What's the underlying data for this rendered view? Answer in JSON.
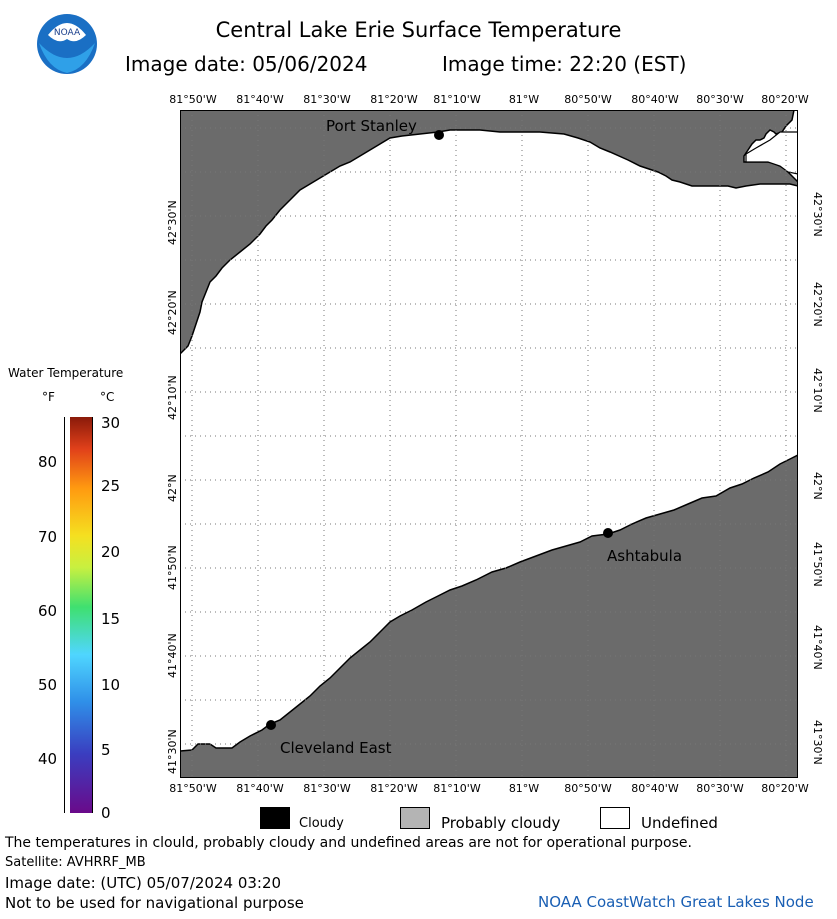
{
  "header": {
    "title": "Central Lake Erie Surface Temperature",
    "image_date": "Image date: 05/06/2024",
    "image_time": "Image time: 22:20 (EST)",
    "logo_text": "NOAA"
  },
  "map": {
    "lon_labels": [
      "81°50'W",
      "81°40'W",
      "81°30'W",
      "81°20'W",
      "81°10'W",
      "81°W",
      "80°50'W",
      "80°40'W",
      "80°30'W",
      "80°20'W"
    ],
    "lat_labels": [
      "42°30'N",
      "42°20'N",
      "42°10'N",
      "42°N",
      "41°50'N",
      "41°40'N",
      "41°30'N"
    ],
    "cities": [
      {
        "name": "Port Stanley"
      },
      {
        "name": "Ashtabula"
      },
      {
        "name": "Cleveland East"
      }
    ],
    "colors": {
      "land": "#6b6b6b",
      "water": "#ffffff",
      "grid": "#888888"
    }
  },
  "legend": {
    "title": "Water Temperature",
    "unit_f": "°F",
    "unit_c": "°C",
    "f_ticks": [
      "80",
      "70",
      "60",
      "50",
      "40"
    ],
    "c_ticks": [
      "30",
      "25",
      "20",
      "15",
      "10",
      "5",
      "0"
    ],
    "keys": [
      {
        "label": "Cloudy",
        "color": "#000000"
      },
      {
        "label": "Probably cloudy",
        "color": "#b4b4b4"
      },
      {
        "label": "Undefined",
        "color": "#ffffff"
      }
    ]
  },
  "footer": {
    "disclaimer": "The temperatures in clould, probably cloudy and undefined areas are not for operational purpose.",
    "satellite": "Satellite: AVHRRF_MB",
    "utc_date": "Image date: (UTC) 05/07/2024  03:20",
    "nav_warning": "Not to be used for navigational purpose",
    "credit": "NOAA CoastWatch Great Lakes Node"
  }
}
